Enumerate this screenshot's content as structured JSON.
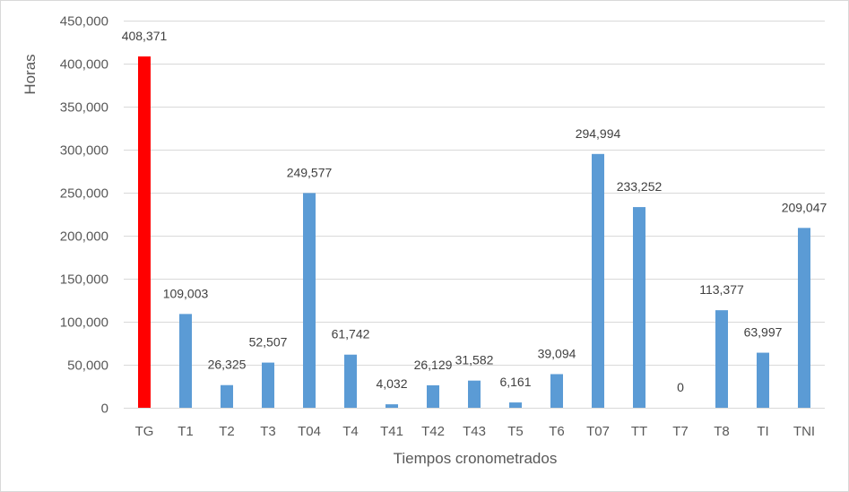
{
  "chart_data": {
    "type": "bar",
    "title": "",
    "xlabel": "Tiempos cronometrados",
    "ylabel": "Horas",
    "ylim": [
      0,
      450000
    ],
    "yticks": [
      0,
      50000,
      100000,
      150000,
      200000,
      250000,
      300000,
      350000,
      400000,
      450000
    ],
    "ytick_labels": [
      "0",
      "50,000",
      "100,000",
      "150,000",
      "200,000",
      "250,000",
      "300,000",
      "350,000",
      "400,000",
      "450,000"
    ],
    "grid": true,
    "legend": null,
    "categories": [
      "TG",
      "T1",
      "T2",
      "T3",
      "T04",
      "T4",
      "T41",
      "T42",
      "T43",
      "T5",
      "T6",
      "T07",
      "TT",
      "T7",
      "T8",
      "TI",
      "TNI"
    ],
    "values": [
      408371,
      109003,
      26325,
      52507,
      249577,
      61742,
      4032,
      26129,
      31582,
      6161,
      39094,
      294994,
      233252,
      0,
      113377,
      63997,
      209047
    ],
    "data_labels": [
      "408,371",
      "109,003",
      "26,325",
      "52,507",
      "249,577",
      "61,742",
      "4,032",
      "26,129",
      "31,582",
      "6,161",
      "39,094",
      "294,994",
      "233,252",
      "0",
      "113,377",
      "63,997",
      "209,047"
    ],
    "bar_colors": [
      "#ff0000",
      "#5b9bd5",
      "#5b9bd5",
      "#5b9bd5",
      "#5b9bd5",
      "#5b9bd5",
      "#5b9bd5",
      "#5b9bd5",
      "#5b9bd5",
      "#5b9bd5",
      "#5b9bd5",
      "#5b9bd5",
      "#5b9bd5",
      "#5b9bd5",
      "#5b9bd5",
      "#5b9bd5",
      "#5b9bd5"
    ],
    "colors": {
      "highlight": "#ff0000",
      "default": "#5b9bd5",
      "grid": "#d9d9d9",
      "text": "#595959"
    }
  }
}
